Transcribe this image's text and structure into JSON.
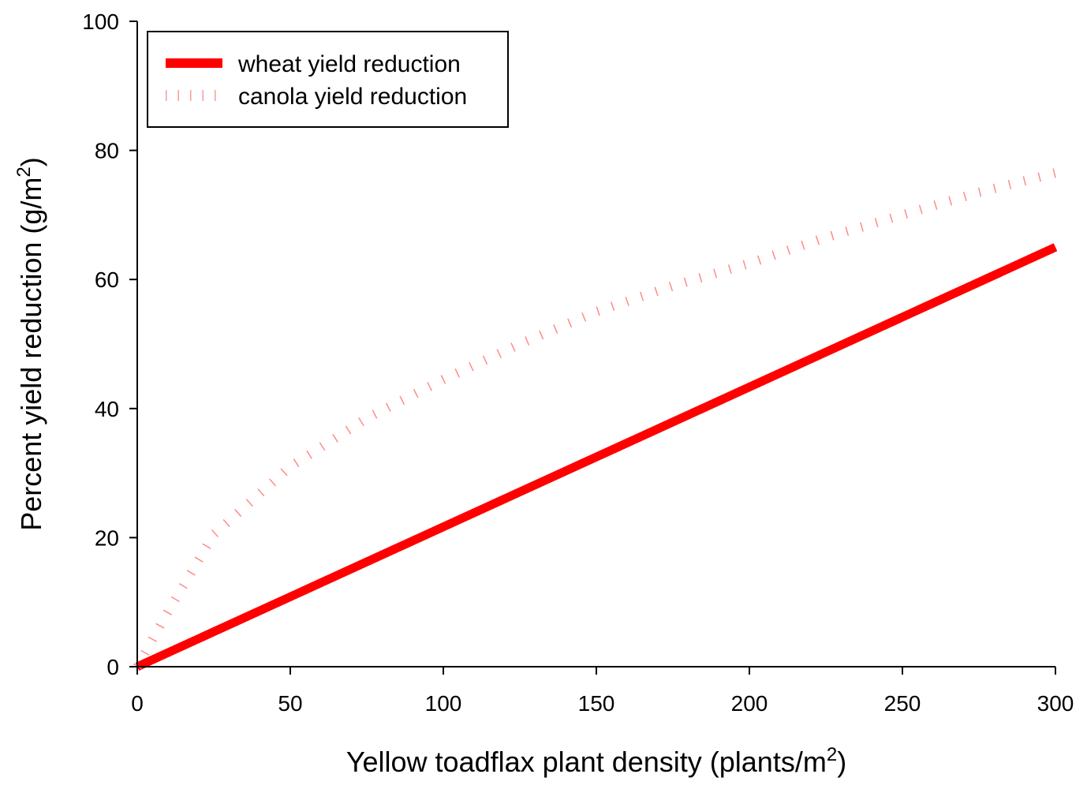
{
  "chart_data": {
    "type": "line",
    "title": "",
    "xlabel": "Yellow toadflax plant density (plants/m",
    "xlabel_sup": "2",
    "xlabel_end": ")",
    "ylabel": "Percent yield reduction (g/m",
    "ylabel_sup": "2",
    "ylabel_end": ")",
    "xlim": [
      0,
      300
    ],
    "ylim": [
      0,
      100
    ],
    "xticks": [
      "0",
      "50",
      "100",
      "150",
      "200",
      "250",
      "300"
    ],
    "yticks": [
      "0",
      "20",
      "40",
      "60",
      "80",
      "100"
    ],
    "grid": false,
    "legend_position": "top-left",
    "series": [
      {
        "name": "wheat yield reduction",
        "style": "solid-thick",
        "color": "#ff0000",
        "x": [
          0,
          300
        ],
        "y": [
          0,
          65
        ]
      },
      {
        "name": "canola yield reduction",
        "style": "dotted",
        "color": "#ff0000",
        "x": [
          0,
          10,
          20,
          25,
          50,
          75,
          100,
          125,
          150,
          175,
          200,
          225,
          250,
          275,
          300
        ],
        "y": [
          0,
          8.5,
          16.5,
          20.5,
          31,
          38.5,
          44.5,
          50,
          55,
          59,
          62.5,
          66.5,
          70,
          73.5,
          76.5
        ]
      }
    ]
  }
}
